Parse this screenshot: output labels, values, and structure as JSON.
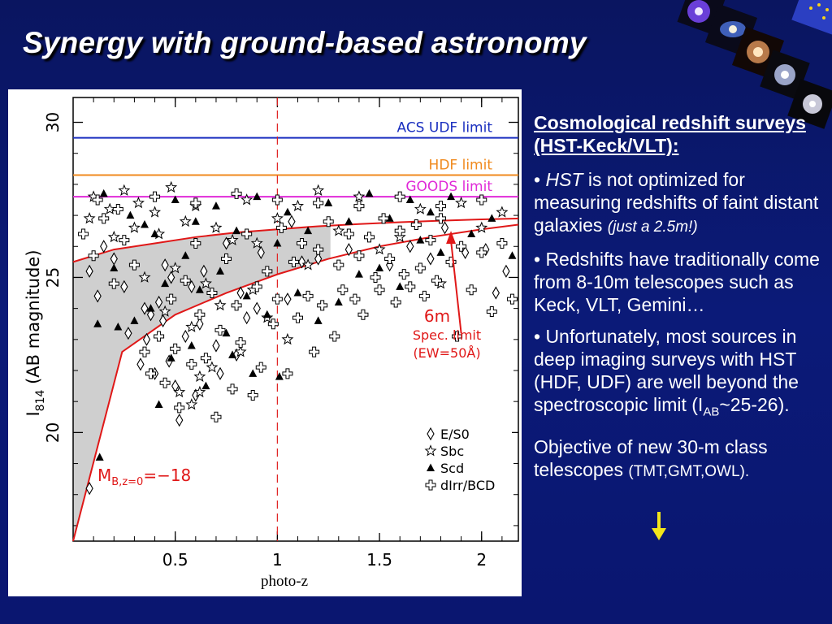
{
  "slide": {
    "title": "Synergy with ground-based astronomy",
    "colors": {
      "background": "#0b1a78",
      "text": "#ffffff",
      "arrow": "#f2e51a"
    }
  },
  "text_panel": {
    "heading": "Cosmological redshift surveys (HST-Keck/VLT):",
    "bullets": [
      {
        "pre": "• ",
        "em": "HST",
        "text": " is not optimized for measuring redshifts of faint distant galaxies ",
        "note": "(just a 2.5m!)"
      },
      {
        "text": "• Redshifts have traditionally come from 8-10m telescopes such as Keck, VLT, Gemini…"
      },
      {
        "text_a": "• Unfortunately, most sources in deep imaging surveys with HST (HDF, UDF) are well beyond the spectroscopic limit (I",
        "sub": "AB",
        "text_b": "~25-26)."
      }
    ],
    "conclusion": "Objective of new 30-m class telescopes ",
    "conclusion_small": "(TMT,GMT,OWL)."
  },
  "chart_data": {
    "type": "scatter",
    "xlabel": "photo-z",
    "ylabel_main": "I",
    "ylabel_sub": "814",
    "ylabel_rest": "(AB magnitude)",
    "xlim": [
      0,
      2.18
    ],
    "ylim": [
      16.5,
      30.8
    ],
    "x_ticks": [
      0.5,
      1,
      1.5,
      2
    ],
    "x_tick_labels": [
      "0.5",
      "1",
      "1.5",
      "2"
    ],
    "y_ticks": [
      20,
      25,
      30
    ],
    "y_tick_labels": [
      "20",
      "25",
      "30"
    ],
    "reference_lines": [
      {
        "label": "ACS  UDF  limit",
        "y": 29.5,
        "color": "#1a2fbf"
      },
      {
        "label": "HDF  limit",
        "y": 28.3,
        "color": "#f08a1e"
      },
      {
        "label": "GOODS  limit",
        "y": 27.6,
        "color": "#e02ad8"
      }
    ],
    "vertical_line": {
      "x": 1.0,
      "color": "#e02020",
      "style": "dashed"
    },
    "spec_limit_curve": {
      "x": [
        0.0,
        0.2,
        0.4,
        0.6,
        0.8,
        1.0,
        1.2,
        1.4,
        1.6,
        1.8,
        2.0,
        2.18
      ],
      "y": [
        25.5,
        25.9,
        26.1,
        26.3,
        26.45,
        26.55,
        26.65,
        26.72,
        26.78,
        26.83,
        26.87,
        26.9
      ]
    },
    "absolute_mag_curve": {
      "x": [
        0.0,
        0.24,
        0.5,
        0.75,
        1.0,
        1.25,
        1.5,
        1.75,
        2.0,
        2.18
      ],
      "y": [
        16.5,
        22.6,
        23.8,
        24.5,
        25.1,
        25.6,
        26.0,
        26.3,
        26.55,
        26.7
      ]
    },
    "annotations": {
      "spec_6m": "6m",
      "spec_line1": "Spec.  limit",
      "spec_line2": "(EW=50Å)",
      "spec_arrow": {
        "from": [
          1.9,
          23.2
        ],
        "to": [
          1.85,
          26.5
        ]
      },
      "mag_label": "M",
      "mag_sub": "B,z=0",
      "mag_value": "=−18"
    },
    "legend": {
      "placement": "bottom-right",
      "entries": [
        {
          "symbol": "diamond",
          "label": "E/S0"
        },
        {
          "symbol": "star",
          "label": "Sbc"
        },
        {
          "symbol": "triangle",
          "label": "Scd"
        },
        {
          "symbol": "cross",
          "label": "dIrr/BCD"
        }
      ]
    },
    "series": [
      {
        "name": "E/S0",
        "symbol": "diamond",
        "points": [
          [
            0.08,
            25.2
          ],
          [
            0.12,
            24.4
          ],
          [
            0.15,
            26.0
          ],
          [
            0.2,
            25.6
          ],
          [
            0.25,
            24.7
          ],
          [
            0.27,
            23.2
          ],
          [
            0.33,
            22.2
          ],
          [
            0.35,
            24.0
          ],
          [
            0.36,
            23.0
          ],
          [
            0.38,
            23.8
          ],
          [
            0.4,
            21.9
          ],
          [
            0.42,
            24.2
          ],
          [
            0.44,
            23.6
          ],
          [
            0.45,
            25.4
          ],
          [
            0.47,
            22.3
          ],
          [
            0.48,
            25.0
          ],
          [
            0.5,
            21.5
          ],
          [
            0.52,
            20.4
          ],
          [
            0.55,
            23.1
          ],
          [
            0.58,
            24.7
          ],
          [
            0.6,
            21.2
          ],
          [
            0.62,
            23.5
          ],
          [
            0.64,
            25.2
          ],
          [
            0.7,
            22.8
          ],
          [
            0.72,
            21.9
          ],
          [
            0.75,
            26.1
          ],
          [
            0.8,
            22.5
          ],
          [
            0.82,
            24.5
          ],
          [
            0.85,
            23.7
          ],
          [
            0.9,
            24.0
          ],
          [
            0.92,
            25.8
          ],
          [
            1.05,
            24.3
          ],
          [
            1.07,
            26.8
          ],
          [
            1.12,
            25.5
          ],
          [
            1.2,
            25.6
          ],
          [
            1.35,
            25.9
          ],
          [
            1.55,
            25.4
          ],
          [
            1.65,
            26.0
          ],
          [
            1.75,
            25.6
          ],
          [
            1.82,
            26.6
          ],
          [
            1.92,
            25.8
          ],
          [
            2.02,
            25.9
          ],
          [
            2.07,
            24.5
          ],
          [
            2.12,
            25.2
          ],
          [
            0.08,
            18.2
          ]
        ]
      },
      {
        "name": "Sbc",
        "symbol": "star",
        "points": [
          [
            0.08,
            26.9
          ],
          [
            0.1,
            27.6
          ],
          [
            0.18,
            27.2
          ],
          [
            0.2,
            26.3
          ],
          [
            0.25,
            27.8
          ],
          [
            0.3,
            26.6
          ],
          [
            0.32,
            27.4
          ],
          [
            0.35,
            25.0
          ],
          [
            0.4,
            27.1
          ],
          [
            0.42,
            26.4
          ],
          [
            0.45,
            23.9
          ],
          [
            0.48,
            27.9
          ],
          [
            0.5,
            25.3
          ],
          [
            0.52,
            21.3
          ],
          [
            0.55,
            26.8
          ],
          [
            0.58,
            23.4
          ],
          [
            0.6,
            27.3
          ],
          [
            0.62,
            21.8
          ],
          [
            0.65,
            24.8
          ],
          [
            0.68,
            22.1
          ],
          [
            0.7,
            26.6
          ],
          [
            0.72,
            24.1
          ],
          [
            0.78,
            26.2
          ],
          [
            0.82,
            22.6
          ],
          [
            0.85,
            27.5
          ],
          [
            0.88,
            24.6
          ],
          [
            0.9,
            26.1
          ],
          [
            0.95,
            23.7
          ],
          [
            1.0,
            26.9
          ],
          [
            1.05,
            23.0
          ],
          [
            1.1,
            27.3
          ],
          [
            1.15,
            25.4
          ],
          [
            1.2,
            27.8
          ],
          [
            1.3,
            26.5
          ],
          [
            1.4,
            27.6
          ],
          [
            1.5,
            25.9
          ],
          [
            1.6,
            26.3
          ],
          [
            1.7,
            27.2
          ],
          [
            1.8,
            24.8
          ],
          [
            1.9,
            27.4
          ],
          [
            2.0,
            26.6
          ],
          [
            2.1,
            27.1
          ],
          [
            0.62,
            21.3
          ],
          [
            0.58,
            20.9
          ]
        ]
      },
      {
        "name": "Scd",
        "symbol": "triangle",
        "points": [
          [
            0.12,
            23.5
          ],
          [
            0.13,
            19.2
          ],
          [
            0.15,
            27.7
          ],
          [
            0.2,
            25.3
          ],
          [
            0.22,
            23.4
          ],
          [
            0.28,
            27.0
          ],
          [
            0.3,
            23.6
          ],
          [
            0.35,
            26.7
          ],
          [
            0.38,
            24.0
          ],
          [
            0.4,
            26.4
          ],
          [
            0.42,
            20.9
          ],
          [
            0.45,
            24.8
          ],
          [
            0.48,
            22.4
          ],
          [
            0.5,
            27.5
          ],
          [
            0.55,
            25.7
          ],
          [
            0.58,
            22.8
          ],
          [
            0.6,
            26.8
          ],
          [
            0.62,
            24.6
          ],
          [
            0.65,
            21.5
          ],
          [
            0.7,
            27.3
          ],
          [
            0.72,
            25.2
          ],
          [
            0.75,
            23.2
          ],
          [
            0.78,
            22.5
          ],
          [
            0.8,
            26.5
          ],
          [
            0.85,
            24.4
          ],
          [
            0.88,
            21.9
          ],
          [
            0.9,
            27.6
          ],
          [
            0.95,
            23.8
          ],
          [
            1.0,
            26.1
          ],
          [
            1.01,
            21.8
          ],
          [
            1.05,
            27.1
          ],
          [
            1.1,
            24.5
          ],
          [
            1.15,
            26.5
          ],
          [
            1.2,
            23.6
          ],
          [
            1.25,
            27.4
          ],
          [
            1.3,
            24.2
          ],
          [
            1.35,
            26.8
          ],
          [
            1.4,
            25.1
          ],
          [
            1.45,
            27.7
          ],
          [
            1.5,
            25.3
          ],
          [
            1.55,
            26.9
          ],
          [
            1.6,
            24.7
          ],
          [
            1.65,
            27.5
          ],
          [
            1.7,
            26.2
          ],
          [
            1.75,
            27.1
          ],
          [
            1.8,
            25.8
          ],
          [
            1.85,
            27.6
          ],
          [
            1.95,
            26.4
          ],
          [
            2.05,
            26.9
          ],
          [
            2.15,
            25.7
          ]
        ]
      },
      {
        "name": "dIrr/BCD",
        "symbol": "cross",
        "points": [
          [
            0.05,
            26.4
          ],
          [
            0.1,
            25.7
          ],
          [
            0.15,
            26.9
          ],
          [
            0.2,
            24.8
          ],
          [
            0.25,
            26.2
          ],
          [
            0.3,
            25.4
          ],
          [
            0.35,
            22.6
          ],
          [
            0.38,
            21.9
          ],
          [
            0.42,
            23.1
          ],
          [
            0.45,
            21.6
          ],
          [
            0.48,
            24.3
          ],
          [
            0.5,
            22.7
          ],
          [
            0.52,
            20.8
          ],
          [
            0.55,
            24.9
          ],
          [
            0.58,
            22.2
          ],
          [
            0.6,
            26.1
          ],
          [
            0.62,
            23.8
          ],
          [
            0.65,
            22.4
          ],
          [
            0.68,
            24.5
          ],
          [
            0.7,
            20.5
          ],
          [
            0.72,
            23.3
          ],
          [
            0.75,
            25.6
          ],
          [
            0.78,
            21.4
          ],
          [
            0.8,
            24.1
          ],
          [
            0.82,
            22.9
          ],
          [
            0.85,
            26.4
          ],
          [
            0.88,
            21.2
          ],
          [
            0.9,
            24.7
          ],
          [
            0.92,
            22.1
          ],
          [
            0.95,
            25.2
          ],
          [
            0.98,
            23.5
          ],
          [
            1.0,
            24.3
          ],
          [
            1.02,
            26.6
          ],
          [
            1.05,
            21.9
          ],
          [
            1.08,
            25.5
          ],
          [
            1.1,
            23.7
          ],
          [
            1.12,
            26.1
          ],
          [
            1.15,
            24.4
          ],
          [
            1.18,
            22.6
          ],
          [
            1.2,
            25.9
          ],
          [
            1.22,
            24.1
          ],
          [
            1.25,
            26.8
          ],
          [
            1.28,
            23.1
          ],
          [
            1.3,
            25.4
          ],
          [
            1.32,
            24.6
          ],
          [
            1.35,
            26.4
          ],
          [
            1.38,
            24.3
          ],
          [
            1.4,
            25.7
          ],
          [
            1.42,
            23.8
          ],
          [
            1.45,
            26.3
          ],
          [
            1.48,
            25.0
          ],
          [
            1.5,
            24.6
          ],
          [
            1.52,
            26.9
          ],
          [
            1.55,
            25.6
          ],
          [
            1.58,
            24.2
          ],
          [
            1.6,
            26.5
          ],
          [
            1.62,
            25.1
          ],
          [
            1.65,
            24.7
          ],
          [
            1.68,
            26.7
          ],
          [
            1.7,
            25.3
          ],
          [
            1.72,
            24.4
          ],
          [
            1.75,
            26.2
          ],
          [
            1.78,
            24.9
          ],
          [
            1.8,
            26.9
          ],
          [
            1.85,
            25.5
          ],
          [
            1.88,
            23.1
          ],
          [
            1.9,
            26.0
          ],
          [
            1.95,
            24.6
          ],
          [
            2.0,
            25.8
          ],
          [
            2.05,
            23.9
          ],
          [
            2.1,
            26.1
          ],
          [
            2.15,
            24.3
          ],
          [
            0.12,
            27.5
          ],
          [
            0.22,
            27.2
          ],
          [
            0.4,
            27.6
          ],
          [
            0.6,
            27.4
          ],
          [
            0.8,
            27.7
          ],
          [
            1.0,
            27.5
          ],
          [
            1.2,
            27.4
          ],
          [
            1.4,
            27.3
          ],
          [
            1.6,
            27.6
          ],
          [
            1.8,
            27.3
          ],
          [
            2.0,
            27.5
          ]
        ]
      }
    ]
  }
}
